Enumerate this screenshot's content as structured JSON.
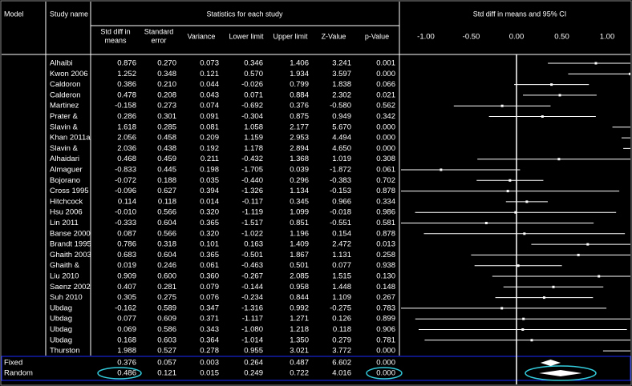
{
  "header": {
    "model": "Model",
    "study_name": "Study name",
    "statistics": "Statistics for each study",
    "plot_title": "Std diff in means and 95% CI"
  },
  "columns": [
    [
      "Std diff in",
      "means"
    ],
    [
      "Standard",
      "error"
    ],
    [
      "Variance"
    ],
    [
      "Lower limit"
    ],
    [
      "Upper limit"
    ],
    [
      "Z-Value"
    ],
    [
      "p-Value"
    ]
  ],
  "axis": {
    "xlim": [
      -1,
      1
    ],
    "xticks": [
      {
        "value": -1,
        "label": "-1.00"
      },
      {
        "value": -0.5,
        "label": "-0.50"
      },
      {
        "value": 0,
        "label": "0.00"
      },
      {
        "value": 0.5,
        "label": "0.50"
      },
      {
        "value": 1,
        "label": "1.00"
      }
    ]
  },
  "rows": [
    {
      "study": "Alhaibi",
      "cells": [
        "0.876",
        "0.270",
        "0.073",
        "0.346",
        "1.406",
        "3.241",
        "0.001"
      ]
    },
    {
      "study": "Kwon 2006",
      "cells": [
        "1.252",
        "0.348",
        "0.121",
        "0.570",
        "1.934",
        "3.597",
        "0.000"
      ]
    },
    {
      "study": "Caldoron",
      "cells": [
        "0.386",
        "0.210",
        "0.044",
        "-0.026",
        "0.799",
        "1.838",
        "0.066"
      ]
    },
    {
      "study": "Calderon",
      "cells": [
        "0.478",
        "0.208",
        "0.043",
        "0.071",
        "0.884",
        "2.302",
        "0.021"
      ]
    },
    {
      "study": "Martinez",
      "cells": [
        "-0.158",
        "0.273",
        "0.074",
        "-0.692",
        "0.376",
        "-0.580",
        "0.562"
      ]
    },
    {
      "study": "Prater &",
      "cells": [
        "0.286",
        "0.301",
        "0.091",
        "-0.304",
        "0.875",
        "0.949",
        "0.342"
      ]
    },
    {
      "study": "Slavin &",
      "cells": [
        "1.618",
        "0.285",
        "0.081",
        "1.058",
        "2.177",
        "5.670",
        "0.000"
      ]
    },
    {
      "study": "Khan 2011a",
      "cells": [
        "2.056",
        "0.458",
        "0.209",
        "1.159",
        "2.953",
        "4.494",
        "0.000"
      ]
    },
    {
      "study": "Slavin &",
      "cells": [
        "2.036",
        "0.438",
        "0.192",
        "1.178",
        "2.894",
        "4.650",
        "0.000"
      ]
    },
    {
      "study": "Alhaidari",
      "cells": [
        "0.468",
        "0.459",
        "0.211",
        "-0.432",
        "1.368",
        "1.019",
        "0.308"
      ]
    },
    {
      "study": "Almaguer",
      "cells": [
        "-0.833",
        "0.445",
        "0.198",
        "-1.705",
        "0.039",
        "-1.872",
        "0.061"
      ]
    },
    {
      "study": "Bojorano",
      "cells": [
        "-0.072",
        "0.188",
        "0.035",
        "-0.440",
        "0.296",
        "-0.383",
        "0.702"
      ]
    },
    {
      "study": "Cross 1995",
      "cells": [
        "-0.096",
        "0.627",
        "0.394",
        "-1.326",
        "1.134",
        "-0.153",
        "0.878"
      ]
    },
    {
      "study": "Hitchcock",
      "cells": [
        "0.114",
        "0.118",
        "0.014",
        "-0.117",
        "0.345",
        "0.966",
        "0.334"
      ]
    },
    {
      "study": "Hsu 2006",
      "cells": [
        "-0.010",
        "0.566",
        "0.320",
        "-1.119",
        "1.099",
        "-0.018",
        "0.986"
      ]
    },
    {
      "study": "Lin 2011",
      "cells": [
        "-0.333",
        "0.604",
        "0.365",
        "-1.517",
        "0.851",
        "-0.551",
        "0.581"
      ]
    },
    {
      "study": "Banse 2000",
      "cells": [
        "0.087",
        "0.566",
        "0.320",
        "-1.022",
        "1.196",
        "0.154",
        "0.878"
      ]
    },
    {
      "study": "Brandt 1995",
      "cells": [
        "0.786",
        "0.318",
        "0.101",
        "0.163",
        "1.409",
        "2.472",
        "0.013"
      ]
    },
    {
      "study": "Ghaith 2003",
      "cells": [
        "0.683",
        "0.604",
        "0.365",
        "-0.501",
        "1.867",
        "1.131",
        "0.258"
      ]
    },
    {
      "study": "Ghaith &",
      "cells": [
        "0.019",
        "0.246",
        "0.061",
        "-0.463",
        "0.501",
        "0.077",
        "0.938"
      ]
    },
    {
      "study": "Liu 2010",
      "cells": [
        "0.909",
        "0.600",
        "0.360",
        "-0.267",
        "2.085",
        "1.515",
        "0.130"
      ]
    },
    {
      "study": "Saenz 2002",
      "cells": [
        "0.407",
        "0.281",
        "0.079",
        "-0.144",
        "0.958",
        "1.448",
        "0.148"
      ]
    },
    {
      "study": "Suh 2010",
      "cells": [
        "0.305",
        "0.275",
        "0.076",
        "-0.234",
        "0.844",
        "1.109",
        "0.267"
      ]
    },
    {
      "study": "Ubdag",
      "cells": [
        "-0.162",
        "0.589",
        "0.347",
        "-1.316",
        "0.992",
        "-0.275",
        "0.783"
      ]
    },
    {
      "study": "Ubdag",
      "cells": [
        "0.077",
        "0.609",
        "0.371",
        "-1.117",
        "1.271",
        "0.126",
        "0.899"
      ]
    },
    {
      "study": "Ubdag",
      "cells": [
        "0.069",
        "0.586",
        "0.343",
        "-1.080",
        "1.218",
        "0.118",
        "0.906"
      ]
    },
    {
      "study": "Ubdag",
      "cells": [
        "0.168",
        "0.603",
        "0.364",
        "-1.014",
        "1.350",
        "0.279",
        "0.781"
      ]
    },
    {
      "study": "Thurston",
      "cells": [
        "1.988",
        "0.527",
        "0.278",
        "0.955",
        "3.021",
        "3.772",
        "0.000"
      ]
    }
  ],
  "summary": [
    {
      "model": "Fixed",
      "cells": [
        "0.376",
        "0.057",
        "0.003",
        "0.264",
        "0.487",
        "6.602",
        "0.000"
      ]
    },
    {
      "model": "Random",
      "cells": [
        "0.486",
        "0.121",
        "0.015",
        "0.249",
        "0.722",
        "4.016",
        "0.000"
      ]
    }
  ]
}
